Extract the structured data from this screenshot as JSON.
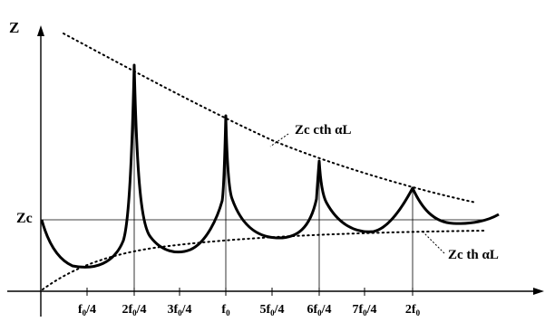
{
  "diagram": {
    "y_axis_label": "Z",
    "zc_label": "Zc",
    "upper_curve_label": {
      "main": "Zc cth ",
      "greek": "α",
      "tail": "L"
    },
    "lower_curve_label": {
      "main": "Zc th ",
      "greek": "α",
      "tail": "L"
    },
    "x_ticks": [
      {
        "a": "f",
        "sub": "0",
        "b": "/4"
      },
      {
        "a": "2f",
        "sub": "0",
        "b": "/4"
      },
      {
        "a": "3f",
        "sub": "0",
        "b": "/4"
      },
      {
        "a": "f",
        "sub": "0",
        "b": ""
      },
      {
        "a": "5f",
        "sub": "0",
        "b": "/4"
      },
      {
        "a": "6f",
        "sub": "0",
        "b": "/4"
      },
      {
        "a": "7f",
        "sub": "0",
        "b": "/4"
      },
      {
        "a": "2f",
        "sub": "0",
        "b": ""
      }
    ]
  }
}
